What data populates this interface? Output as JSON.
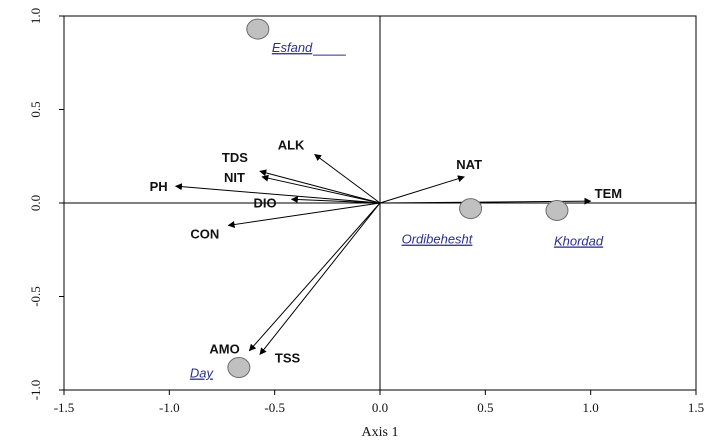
{
  "chart_data": {
    "type": "scatter",
    "title": "",
    "xlabel": "Axis 1",
    "ylabel": "",
    "xlim": [
      -1.5,
      1.5
    ],
    "ylim": [
      -1.0,
      1.0
    ],
    "x_ticks": [
      -1.5,
      -1.0,
      -0.5,
      0.0,
      0.5,
      1.0,
      1.5
    ],
    "x_tick_labels": [
      "-1.5",
      "-1.0",
      "-0.5",
      "0.0",
      "0.5",
      "1.0",
      "1.5"
    ],
    "y_ticks": [
      -1.0,
      -0.5,
      0.0,
      0.5,
      1.0
    ],
    "y_tick_labels": [
      "-1.0",
      "-0.5",
      "0.0",
      "0.5",
      "1.0"
    ],
    "grid": false,
    "reference_lines": {
      "x": 0,
      "y": 0
    },
    "vectors": [
      {
        "label": "ALK",
        "x": -0.31,
        "y": 0.26
      },
      {
        "label": "TDS",
        "x": -0.57,
        "y": 0.17
      },
      {
        "label": "NIT",
        "x": -0.56,
        "y": 0.14
      },
      {
        "label": "PH",
        "x": -0.97,
        "y": 0.09
      },
      {
        "label": "DIO",
        "x": -0.42,
        "y": 0.02
      },
      {
        "label": "CON",
        "x": -0.72,
        "y": -0.12
      },
      {
        "label": "AMO",
        "x": -0.62,
        "y": -0.79
      },
      {
        "label": "TSS",
        "x": -0.57,
        "y": -0.81
      },
      {
        "label": "NAT",
        "x": 0.4,
        "y": 0.14
      },
      {
        "label": "TEM",
        "x": 1.0,
        "y": 0.01
      }
    ],
    "points": [
      {
        "label": "Esfand",
        "x": -0.58,
        "y": 0.93
      },
      {
        "label": "Ordibehesht",
        "x": 0.43,
        "y": -0.03
      },
      {
        "label": "Khordad",
        "x": 0.84,
        "y": -0.04
      },
      {
        "label": "Day",
        "x": -0.67,
        "y": -0.88
      }
    ],
    "colors": {
      "point_fill": "#c0c0c0",
      "point_stroke": "#6b6b6b",
      "site_text": "#2b2f8f",
      "line": "#000000"
    }
  }
}
